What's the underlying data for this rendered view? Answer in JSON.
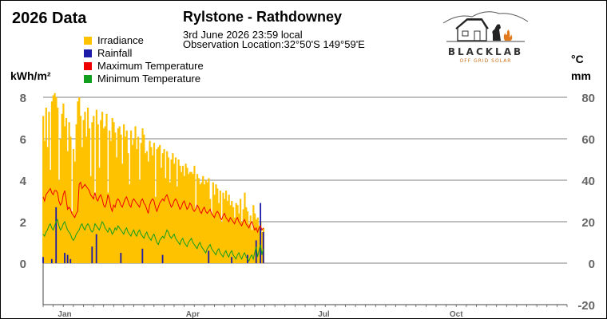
{
  "header": {
    "title": "2026 Data",
    "station": "Rylstone - Rathdowney",
    "timestamp": "3rd June 2026  23:59 local",
    "location": "Observation Location:32°50'S 149°59'E"
  },
  "logo": {
    "brand": "BLACKLAB",
    "tagline": "OFF GRID SOLAR"
  },
  "colors": {
    "irradiance": "#ffc200",
    "rainfall": "#1c1ca8",
    "max_temp": "#ee0000",
    "min_temp": "#129e1e",
    "grid": "#555555",
    "axis_text": "#666666"
  },
  "chart_data": {
    "type": "bar",
    "legend_placement": "top-left",
    "grid": true,
    "legend": [
      {
        "key": "irradiance",
        "label": "Irradiance"
      },
      {
        "key": "rainfall",
        "label": "Rainfall"
      },
      {
        "key": "max_temp",
        "label": "Maximum Temperature"
      },
      {
        "key": "min_temp",
        "label": "Minimum Temperature"
      }
    ],
    "y_left": {
      "label": "kWh/m²",
      "range": [
        0,
        8
      ],
      "ticks": [
        0,
        2,
        4,
        6,
        8
      ]
    },
    "y_right": {
      "label_line1": "°C",
      "label_line2": "mm",
      "range": [
        -20,
        80
      ],
      "ticks": [
        -20,
        0,
        20,
        40,
        60,
        80
      ]
    },
    "x": {
      "type": "day_of_year",
      "range": [
        1,
        365
      ],
      "month_labels": [
        {
          "label": "Jan",
          "day": 16
        },
        {
          "label": "Apr",
          "day": 105
        },
        {
          "label": "Jul",
          "day": 196
        },
        {
          "label": "Oct",
          "day": 288
        }
      ]
    },
    "days": [
      1,
      2,
      3,
      4,
      5,
      6,
      7,
      8,
      9,
      10,
      11,
      12,
      13,
      14,
      15,
      16,
      17,
      18,
      19,
      20,
      21,
      22,
      23,
      24,
      25,
      26,
      27,
      28,
      29,
      30,
      31,
      32,
      33,
      34,
      35,
      36,
      37,
      38,
      39,
      40,
      41,
      42,
      43,
      44,
      45,
      46,
      47,
      48,
      49,
      50,
      51,
      52,
      53,
      54,
      55,
      56,
      57,
      58,
      59,
      60,
      61,
      62,
      63,
      64,
      65,
      66,
      67,
      68,
      69,
      70,
      71,
      72,
      73,
      74,
      75,
      76,
      77,
      78,
      79,
      80,
      81,
      82,
      83,
      84,
      85,
      86,
      87,
      88,
      89,
      90,
      91,
      92,
      93,
      94,
      95,
      96,
      97,
      98,
      99,
      100,
      101,
      102,
      103,
      104,
      105,
      106,
      107,
      108,
      109,
      110,
      111,
      112,
      113,
      114,
      115,
      116,
      117,
      118,
      119,
      120,
      121,
      122,
      123,
      124,
      125,
      126,
      127,
      128,
      129,
      130,
      131,
      132,
      133,
      134,
      135,
      136,
      137,
      138,
      139,
      140,
      141,
      142,
      143,
      144,
      145,
      146,
      147,
      148,
      149,
      150,
      151,
      152,
      153,
      154
    ],
    "series": [
      {
        "key": "irradiance",
        "name": "Irradiance",
        "axis": "left",
        "kind": "bar",
        "values": [
          7.1,
          5.9,
          7.5,
          5.6,
          7.3,
          4.5,
          7.8,
          8.1,
          8.2,
          8.0,
          7.5,
          4.0,
          6.0,
          7.2,
          7.7,
          6.6,
          7.0,
          5.4,
          6.8,
          6.1,
          2.5,
          5.5,
          4.9,
          6.7,
          7.8,
          8.0,
          7.1,
          5.6,
          6.9,
          7.3,
          6.1,
          7.5,
          6.5,
          4.2,
          6.8,
          7.1,
          3.2,
          7.4,
          6.7,
          4.6,
          6.9,
          7.3,
          6.5,
          6.6,
          7.2,
          3.4,
          6.4,
          5.9,
          7.0,
          6.8,
          6.3,
          5.1,
          6.5,
          6.6,
          6.2,
          4.8,
          6.7,
          6.1,
          6.4,
          5.3,
          3.8,
          6.4,
          5.7,
          6.0,
          6.6,
          5.5,
          6.1,
          4.0,
          5.8,
          6.5,
          6.2,
          5.3,
          5.4,
          4.9,
          5.9,
          5.6,
          5.2,
          5.8,
          3.2,
          5.5,
          5.6,
          5.7,
          4.6,
          5.3,
          5.5,
          4.1,
          5.4,
          5.1,
          3.9,
          5.0,
          5.3,
          4.8,
          5.1,
          3.7,
          5.0,
          4.7,
          4.4,
          4.7,
          4.2,
          4.8,
          4.6,
          4.3,
          4.4,
          4.4,
          4.3,
          4.7,
          2.6,
          4.3,
          4.1,
          3.8,
          3.9,
          4.2,
          3.8,
          4.0,
          3.9,
          4.1,
          3.1,
          2.4,
          3.9,
          3.3,
          3.8,
          3.6,
          2.9,
          3.5,
          2.0,
          3.4,
          3.1,
          3.5,
          3.0,
          3.3,
          2.8,
          3.0,
          2.7,
          2.2,
          2.9,
          2.8,
          2.4,
          3.1,
          2.0,
          2.6,
          3.4,
          2.7,
          2.5,
          1.9,
          2.3,
          1.6,
          2.8,
          2.4,
          2.1,
          2.2,
          1.8,
          2.0,
          1.5,
          1.7
        ]
      },
      {
        "key": "max_temp",
        "name": "Maximum Temperature",
        "axis": "right",
        "kind": "line",
        "values": [
          32,
          30,
          33,
          34,
          35,
          36,
          34,
          33,
          35,
          35,
          34,
          30,
          28,
          29,
          33,
          35,
          31,
          26,
          27,
          26,
          24,
          23,
          22,
          24,
          25,
          38,
          39,
          36,
          37,
          38,
          37,
          36,
          35,
          33,
          32,
          31,
          34,
          31,
          30,
          32,
          33,
          31,
          28,
          27,
          29,
          33,
          31,
          27,
          25,
          28,
          27,
          30,
          31,
          30,
          28,
          27,
          29,
          31,
          32,
          30,
          28,
          27,
          30,
          31,
          30,
          29,
          28,
          27,
          30,
          31,
          29,
          28,
          26,
          24,
          28,
          30,
          31,
          30,
          27,
          25,
          27,
          29,
          30,
          31,
          30,
          32,
          33,
          31,
          29,
          27,
          28,
          30,
          31,
          30,
          28,
          26,
          27,
          29,
          30,
          28,
          26,
          27,
          29,
          28,
          26,
          25,
          26,
          28,
          27,
          25,
          24,
          26,
          27,
          25,
          24,
          25,
          26,
          24,
          23,
          22,
          24,
          25,
          24,
          22,
          21,
          23,
          24,
          22,
          21,
          20,
          22,
          21,
          20,
          19,
          21,
          22,
          20,
          19,
          18,
          20,
          21,
          19,
          18,
          17,
          19,
          20,
          18,
          16,
          17,
          15,
          17,
          18,
          16,
          17
        ]
      },
      {
        "key": "min_temp",
        "name": "Minimum Temperature",
        "axis": "right",
        "kind": "line",
        "values": [
          14,
          13,
          15,
          16,
          18,
          19,
          17,
          16,
          18,
          20,
          21,
          18,
          16,
          17,
          19,
          20,
          18,
          16,
          15,
          14,
          12,
          11,
          12,
          14,
          15,
          16,
          18,
          19,
          17,
          16,
          18,
          19,
          18,
          16,
          15,
          16,
          19,
          18,
          17,
          16,
          18,
          20,
          19,
          17,
          16,
          15,
          17,
          16,
          14,
          15,
          17,
          16,
          18,
          17,
          16,
          15,
          14,
          16,
          17,
          15,
          14,
          13,
          15,
          16,
          14,
          13,
          15,
          16,
          14,
          13,
          12,
          14,
          15,
          13,
          12,
          11,
          13,
          14,
          12,
          10,
          9,
          11,
          12,
          13,
          12,
          14,
          16,
          15,
          13,
          12,
          13,
          14,
          12,
          11,
          10,
          9,
          11,
          12,
          10,
          9,
          8,
          10,
          11,
          12,
          10,
          9,
          8,
          7,
          9,
          10,
          8,
          7,
          6,
          5,
          7,
          8,
          9,
          7,
          6,
          5,
          4,
          6,
          7,
          5,
          4,
          3,
          5,
          6,
          4,
          3,
          5,
          6,
          4,
          3,
          2,
          4,
          5,
          3,
          2,
          4,
          5,
          3,
          2,
          1,
          3,
          4,
          2,
          5,
          8,
          3,
          6,
          9,
          4,
          7
        ]
      },
      {
        "key": "rainfall",
        "name": "Rainfall",
        "axis": "right",
        "kind": "bar",
        "values": [
          3,
          0,
          0,
          0,
          0,
          0,
          2,
          0,
          0,
          27,
          0,
          0,
          0,
          0,
          0,
          5,
          0,
          4,
          0,
          2,
          0,
          0,
          0,
          0,
          0,
          0,
          0,
          0,
          0,
          0,
          0,
          0,
          0,
          0,
          8,
          0,
          0,
          14,
          0,
          0,
          0,
          0,
          0,
          0,
          0,
          0,
          0,
          0,
          0,
          0,
          0,
          0,
          0,
          0,
          5,
          0,
          0,
          0,
          0,
          0,
          0,
          0,
          0,
          0,
          0,
          0,
          0,
          0,
          0,
          7,
          0,
          0,
          0,
          0,
          0,
          0,
          0,
          0,
          0,
          0,
          0,
          0,
          0,
          4,
          0,
          0,
          0,
          0,
          0,
          0,
          0,
          0,
          0,
          0,
          0,
          0,
          0,
          0,
          0,
          0,
          0,
          0,
          0,
          0,
          0,
          0,
          0,
          0,
          0,
          0,
          0,
          0,
          0,
          0,
          0,
          6,
          0,
          0,
          0,
          0,
          0,
          0,
          0,
          0,
          0,
          0,
          0,
          0,
          0,
          0,
          0,
          3,
          0,
          0,
          0,
          0,
          0,
          0,
          0,
          0,
          0,
          0,
          4,
          0,
          0,
          0,
          0,
          0,
          11,
          0,
          0,
          29,
          0,
          15
        ]
      }
    ]
  }
}
